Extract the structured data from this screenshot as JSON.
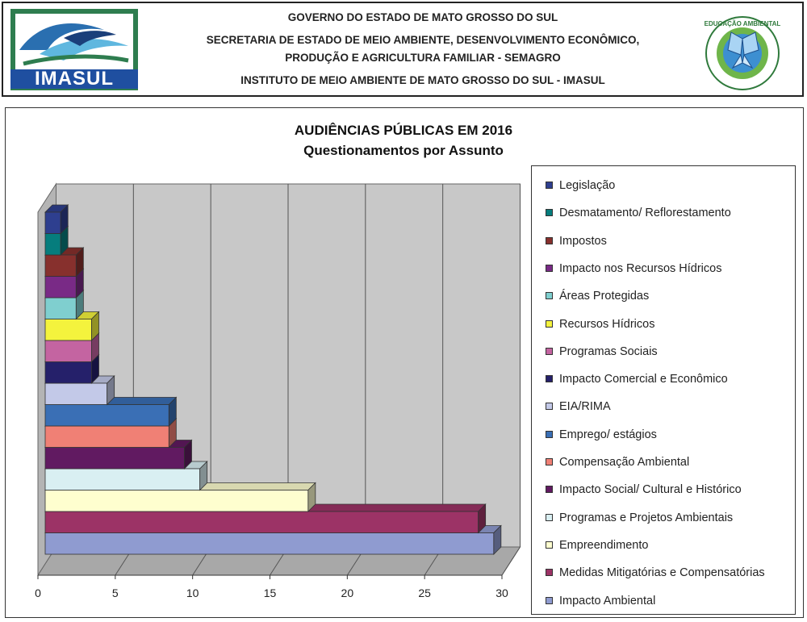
{
  "header": {
    "line1": "GOVERNO DO ESTADO DE MATO GROSSO DO SUL",
    "line2": "SECRETARIA DE ESTADO DE MEIO AMBIENTE, DESENVOLVIMENTO ECONÔMICO,",
    "line3": "PRODUÇÃO E AGRICULTURA FAMILIAR - SEMAGRO",
    "line4": "INSTITUTO DE MEIO AMBIENTE DE MATO GROSSO DO SUL - IMASUL",
    "logo_left_text": "IMASUL",
    "logo_right_text": "EDUCAÇÃO AMBIENTAL"
  },
  "chart_data": {
    "type": "bar",
    "orientation": "horizontal",
    "style": "3d",
    "title": "AUDIÊNCIAS PÚBLICAS EM 2016",
    "subtitle": "Questionamentos por Assunto",
    "xlim": [
      0,
      30
    ],
    "xticks": [
      "0",
      "5",
      "10",
      "15",
      "20",
      "25",
      "30"
    ],
    "grid": true,
    "legend_position": "right",
    "categories": [
      "Impacto Ambiental",
      "Medidas Mitigatórias e Compensatórias",
      "Empreendimento",
      "Programas e Projetos Ambientais",
      "Impacto Social/ Cultural e Histórico",
      "Compensação Ambiental",
      "Emprego/ estágios",
      "EIA/RIMA",
      "Impacto Comercial e Econômico",
      "Programas Sociais",
      "Recursos Hídricos",
      "Áreas Protegidas",
      "Impacto nos Recursos Hídricos",
      "Impostos",
      "Desmatamento/ Reflorestamento",
      "Legislação"
    ],
    "values": [
      29,
      28,
      17,
      10,
      9,
      8,
      8,
      4,
      3,
      3,
      3,
      2,
      2,
      2,
      1,
      1
    ],
    "colors": [
      "#8f9bd0",
      "#9c3366",
      "#fefecf",
      "#d9eff2",
      "#611a61",
      "#f08075",
      "#3a6fb5",
      "#c3c9e8",
      "#25206a",
      "#c464a1",
      "#f4f33d",
      "#7fcfcf",
      "#792a86",
      "#87302d",
      "#067d7d",
      "#2e3f8f"
    ]
  }
}
